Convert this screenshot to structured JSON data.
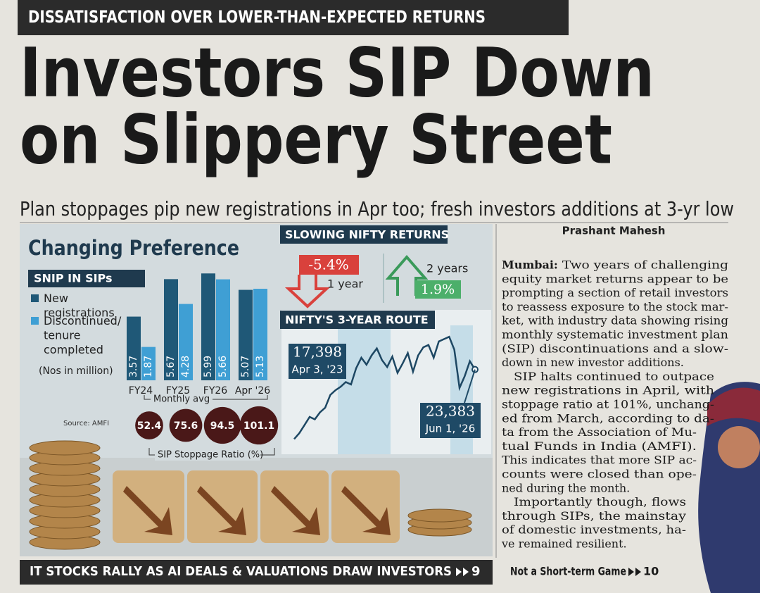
{
  "kicker": "DISSATISFACTION OVER LOWER-THAN-EXPECTED RETURNS",
  "headline": [
    "Investors SIP Down",
    "on Slippery Street"
  ],
  "subhead": "Plan stoppages pip new registrations in Apr too; fresh investors additions at 3-yr low",
  "byline": "Prashant Mahesh",
  "article": [
    {
      "lead": "Mumbai:",
      "lines": [
        "Two years of challenging",
        "equity market returns appear to be",
        "prompting a section of retail investors",
        "to reassess exposure to the stock mar-",
        "ket, with industry data showing rising",
        "monthly systematic investment plan",
        "(SIP) discontinuations and a slow-",
        "down in new investor additions."
      ]
    },
    {
      "lines": [
        "SIP halts continued to outpace",
        "new registrations in April, with",
        "stoppage ratio at 101%, unchang-",
        "ed from March, according to da-",
        "ta from the Association of Mu-",
        "tual Funds in India (AMFI).",
        "This indicates that more SIP ac-",
        "counts were closed than ope-",
        "ned during the month."
      ]
    },
    {
      "lines": [
        "Importantly though, flows",
        "through SIPs, the mainstay",
        "of domestic investments, ha-",
        "ve remained resilient."
      ]
    }
  ],
  "infographic": {
    "title": "Changing Preference",
    "snip_chart": {
      "type": "bar",
      "title": "SNIP IN SIPs",
      "categories": [
        "FY24",
        "FY25",
        "FY26",
        "Apr '26"
      ],
      "series": [
        {
          "name": "New registrations",
          "color": "#1f5877",
          "values": [
            3.57,
            5.67,
            5.99,
            5.07
          ]
        },
        {
          "name": "Discontinued/ tenure completed",
          "color": "#3f9fd4",
          "values": [
            1.87,
            4.28,
            5.66,
            5.13
          ]
        }
      ],
      "unit": "(Nos in million)",
      "bracket_label": "Monthly avg",
      "ylim": [
        0,
        6
      ]
    },
    "source": "Source: AMFI",
    "stoppage_ratio": {
      "label": "SIP Stoppage Ratio (%)",
      "values": [
        52.4,
        75.6,
        94.5,
        101.1
      ],
      "color": "#4a1818"
    },
    "returns": {
      "title": "SLOWING NIFTY RETURNS",
      "items": [
        {
          "value_label": "-5.4%",
          "period": "1 year"
        },
        {
          "value_label": "1.9%",
          "period": "2 years"
        }
      ]
    },
    "nifty": {
      "type": "line",
      "title": "NIFTY'S 3-YEAR ROUTE",
      "color": "#1d4763",
      "values": [
        17398,
        17900,
        18600,
        19300,
        19100,
        19700,
        20100,
        21200,
        21600,
        21900,
        22300,
        22100,
        23500,
        24400,
        23800,
        24600,
        25200,
        24200,
        23600,
        24500,
        23100,
        23900,
        24800,
        23200,
        24600,
        25300,
        25500,
        24400,
        25800,
        26000,
        26200,
        25100,
        21800,
        22800,
        24100,
        23383
      ],
      "ylim": [
        17000,
        27000
      ],
      "start": {
        "value": "17,398",
        "date": "Apr 3, '23"
      },
      "end": {
        "value": "23,383",
        "date": "Jun 1, '26"
      }
    }
  },
  "footer": {
    "teaser": "IT STOCKS RALLY AS AI DEALS & VALUATIONS DRAW INVESTORS",
    "teaser_page": "9",
    "next": "Not a Short-term Game",
    "next_page": "10"
  }
}
